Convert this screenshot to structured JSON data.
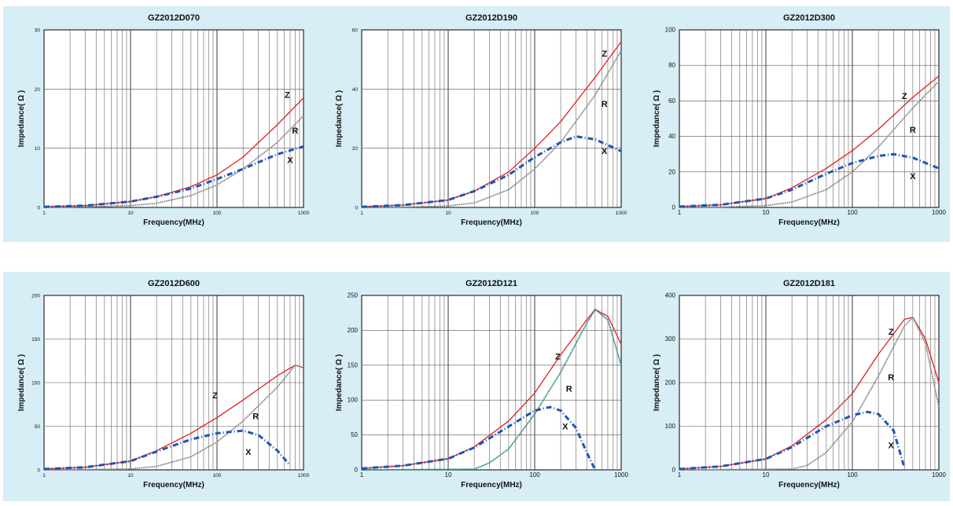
{
  "colors": {
    "background": "#d7eef6",
    "Z": "#e02020",
    "R": "#8a8a8a",
    "R_teal": "#2e8b7e",
    "X": "#1f55b5"
  },
  "chart_data": [
    {
      "type": "line",
      "title": "GZ2012D070",
      "xlabel": "Frequency(MHz)",
      "ylabel": "Impedance( Ω )",
      "x_scale": "log",
      "xlim": [
        1,
        1000
      ],
      "ylim": [
        0,
        30
      ],
      "x_ticks": [
        "1",
        "10",
        "100",
        "1000"
      ],
      "y_ticks": [
        "0",
        "10",
        "20",
        "30"
      ],
      "grid": true,
      "series": [
        {
          "name": "Z",
          "style": "solid",
          "x": [
            1,
            3,
            10,
            20,
            50,
            100,
            200,
            500,
            1000
          ],
          "y": [
            0.1,
            0.3,
            1.0,
            1.8,
            3.5,
            5.5,
            8.5,
            14,
            18.5
          ]
        },
        {
          "name": "R",
          "style": "dotted",
          "x": [
            1,
            3,
            10,
            20,
            50,
            100,
            200,
            500,
            1000
          ],
          "y": [
            0,
            0.1,
            0.3,
            0.7,
            2.0,
            3.8,
            6.5,
            11,
            15.5
          ]
        },
        {
          "name": "X",
          "style": "dashdot",
          "x": [
            1,
            3,
            10,
            20,
            50,
            100,
            200,
            500,
            1000
          ],
          "y": [
            0.1,
            0.3,
            1.0,
            1.8,
            3.2,
            4.8,
            6.5,
            9.0,
            10.3
          ]
        }
      ],
      "curve_labels": [
        {
          "name": "Z",
          "x": 650,
          "y": 18.5
        },
        {
          "name": "R",
          "x": 800,
          "y": 12.5
        },
        {
          "name": "X",
          "x": 700,
          "y": 7.5
        }
      ]
    },
    {
      "type": "line",
      "title": "GZ2012D190",
      "xlabel": "Frequency(MHz)",
      "ylabel": "Impedance( Ω )",
      "x_scale": "log",
      "xlim": [
        1,
        1000
      ],
      "ylim": [
        0,
        60
      ],
      "x_ticks": [
        "1",
        "10",
        "100",
        "1000"
      ],
      "y_ticks": [
        "0",
        "20",
        "40",
        "60"
      ],
      "grid": true,
      "series": [
        {
          "name": "Z",
          "style": "solid",
          "x": [
            1,
            3,
            10,
            20,
            50,
            100,
            200,
            500,
            1000
          ],
          "y": [
            0.2,
            0.8,
            2.5,
            5.5,
            12,
            20,
            29,
            44,
            56
          ]
        },
        {
          "name": "R",
          "style": "dotted",
          "x": [
            1,
            3,
            10,
            20,
            50,
            100,
            200,
            500,
            1000
          ],
          "y": [
            0,
            0.1,
            0.5,
            1.5,
            6,
            13,
            22,
            38,
            53
          ]
        },
        {
          "name": "X",
          "style": "dashdot",
          "x": [
            1,
            3,
            10,
            20,
            50,
            100,
            200,
            300,
            500,
            1000
          ],
          "y": [
            0.2,
            0.8,
            2.5,
            5.5,
            11,
            17,
            22,
            24,
            23,
            19
          ]
        }
      ],
      "curve_labels": [
        {
          "name": "Z",
          "x": 640,
          "y": 51
        },
        {
          "name": "R",
          "x": 640,
          "y": 34
        },
        {
          "name": "X",
          "x": 640,
          "y": 18
        }
      ]
    },
    {
      "type": "line",
      "title": "GZ2012D300",
      "xlabel": "Frequency(MHz)",
      "ylabel": "Impedance( Ω )",
      "x_scale": "log",
      "xlim": [
        1,
        1000
      ],
      "ylim": [
        0,
        100
      ],
      "x_ticks": [
        "1",
        "10",
        "100",
        "1000"
      ],
      "y_ticks": [
        "0",
        "20",
        "40",
        "60",
        "80",
        "100"
      ],
      "grid": true,
      "series": [
        {
          "name": "Z",
          "style": "solid",
          "x": [
            1,
            3,
            10,
            20,
            50,
            100,
            200,
            500,
            1000
          ],
          "y": [
            0.5,
            1.5,
            5,
            11,
            22,
            32,
            44,
            62,
            74
          ]
        },
        {
          "name": "R",
          "style": "dotted",
          "x": [
            1,
            3,
            10,
            20,
            50,
            100,
            200,
            500,
            1000
          ],
          "y": [
            0,
            0.2,
            1,
            3,
            10,
            20,
            34,
            56,
            71
          ]
        },
        {
          "name": "X",
          "style": "dashdot",
          "x": [
            1,
            3,
            10,
            20,
            50,
            100,
            200,
            300,
            500,
            1000
          ],
          "y": [
            0.5,
            1.5,
            5,
            10,
            19,
            25,
            29,
            30,
            28,
            22
          ]
        }
      ],
      "curve_labels": [
        {
          "name": "Z",
          "x": 400,
          "y": 61
        },
        {
          "name": "R",
          "x": 500,
          "y": 42
        },
        {
          "name": "X",
          "x": 500,
          "y": 16
        }
      ]
    },
    {
      "type": "line",
      "title": "GZ2012D600",
      "xlabel": "Frequency(MHz)",
      "ylabel": "Impedance( Ω )",
      "x_scale": "log",
      "xlim": [
        1,
        1000
      ],
      "ylim": [
        0,
        200
      ],
      "x_ticks": [
        "1",
        "10",
        "100",
        "1000"
      ],
      "y_ticks": [
        "0",
        "50",
        "100",
        "150",
        "200"
      ],
      "grid": true,
      "series": [
        {
          "name": "Z",
          "style": "solid",
          "x": [
            1,
            3,
            10,
            20,
            50,
            100,
            200,
            500,
            800,
            1000
          ],
          "y": [
            1,
            3,
            10,
            22,
            42,
            60,
            80,
            108,
            120,
            117
          ]
        },
        {
          "name": "R",
          "style": "dotted",
          "x": [
            1,
            10,
            20,
            50,
            100,
            200,
            500,
            800,
            1000
          ],
          "y": [
            0,
            1,
            4,
            15,
            32,
            56,
            95,
            120,
            117
          ]
        },
        {
          "name": "X",
          "style": "dashdot",
          "x": [
            1,
            3,
            10,
            20,
            50,
            100,
            200,
            300,
            500,
            700
          ],
          "y": [
            1,
            3,
            10,
            21,
            35,
            42,
            45,
            40,
            22,
            5
          ]
        }
      ],
      "curve_labels": [
        {
          "name": "Z",
          "x": 95,
          "y": 82
        },
        {
          "name": "R",
          "x": 280,
          "y": 58
        },
        {
          "name": "X",
          "x": 230,
          "y": 17
        }
      ]
    },
    {
      "type": "line",
      "title": "GZ2012D121",
      "xlabel": "Frequency(MHz)",
      "ylabel": "Impedance( Ω )",
      "x_scale": "log",
      "xlim": [
        1,
        1000
      ],
      "ylim": [
        0,
        250
      ],
      "x_ticks": [
        "1",
        "10",
        "100",
        "1000"
      ],
      "y_ticks": [
        "0",
        "50",
        "100",
        "150",
        "200",
        "250"
      ],
      "grid": true,
      "series": [
        {
          "name": "Z",
          "style": "solid",
          "x": [
            1,
            3,
            10,
            20,
            50,
            100,
            200,
            400,
            500,
            700,
            1000
          ],
          "y": [
            2,
            6,
            16,
            33,
            70,
            110,
            165,
            215,
            230,
            220,
            180
          ]
        },
        {
          "name": "R",
          "style": "dotted",
          "x": [
            1,
            20,
            30,
            50,
            100,
            200,
            400,
            500,
            700,
            1000
          ],
          "y": [
            0,
            1,
            10,
            30,
            80,
            140,
            210,
            230,
            215,
            150
          ]
        },
        {
          "name": "X",
          "style": "dashdot",
          "x": [
            1,
            3,
            10,
            20,
            50,
            100,
            150,
            200,
            300,
            400,
            500
          ],
          "y": [
            2,
            6,
            16,
            32,
            62,
            85,
            90,
            85,
            60,
            25,
            0
          ]
        }
      ],
      "curve_labels": [
        {
          "name": "Z",
          "x": 185,
          "y": 158
        },
        {
          "name": "R",
          "x": 250,
          "y": 112
        },
        {
          "name": "X",
          "x": 225,
          "y": 58
        }
      ]
    },
    {
      "type": "line",
      "title": "GZ2012D181",
      "xlabel": "Frequency(MHz)",
      "ylabel": "Impedance( Ω )",
      "x_scale": "log",
      "xlim": [
        1,
        1000
      ],
      "ylim": [
        0,
        400
      ],
      "x_ticks": [
        "1",
        "10",
        "100",
        "1000"
      ],
      "y_ticks": [
        "0",
        "100",
        "200",
        "300",
        "400"
      ],
      "grid": true,
      "series": [
        {
          "name": "Z",
          "style": "solid",
          "x": [
            1,
            3,
            10,
            20,
            50,
            100,
            200,
            400,
            500,
            700,
            1000
          ],
          "y": [
            2,
            8,
            25,
            55,
            115,
            175,
            265,
            345,
            350,
            300,
            200
          ]
        },
        {
          "name": "R",
          "style": "dotted",
          "x": [
            1,
            20,
            30,
            50,
            100,
            200,
            400,
            500,
            700,
            1000
          ],
          "y": [
            0,
            2,
            10,
            40,
            110,
            215,
            330,
            350,
            290,
            145
          ]
        },
        {
          "name": "X",
          "style": "dashdot",
          "x": [
            1,
            3,
            10,
            20,
            50,
            100,
            150,
            200,
            300,
            400
          ],
          "y": [
            2,
            8,
            25,
            52,
            100,
            125,
            133,
            128,
            90,
            5
          ]
        }
      ],
      "curve_labels": [
        {
          "name": "Z",
          "x": 280,
          "y": 310
        },
        {
          "name": "R",
          "x": 280,
          "y": 205
        },
        {
          "name": "X",
          "x": 280,
          "y": 50
        }
      ]
    }
  ]
}
